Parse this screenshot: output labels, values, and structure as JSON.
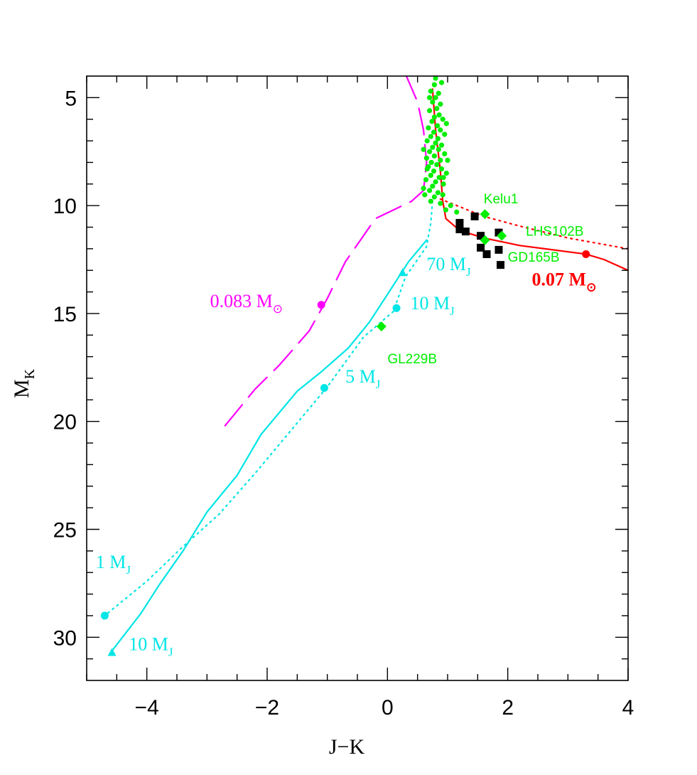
{
  "chart_data": {
    "type": "scatter",
    "xlabel": "J−K",
    "ylabel": {
      "main": "M",
      "sub": "K"
    },
    "xlim": [
      -5,
      4
    ],
    "ylim": [
      32,
      4
    ],
    "y_inverted": true,
    "x_ticks": [
      {
        "value": -4,
        "label": "−4"
      },
      {
        "value": -2,
        "label": "−2"
      },
      {
        "value": 0,
        "label": "0"
      },
      {
        "value": 2,
        "label": "2"
      },
      {
        "value": 4,
        "label": "4"
      }
    ],
    "y_ticks": [
      {
        "value": 5,
        "label": "5"
      },
      {
        "value": 10,
        "label": "10"
      },
      {
        "value": 15,
        "label": "15"
      },
      {
        "value": 20,
        "label": "20"
      },
      {
        "value": 25,
        "label": "25"
      },
      {
        "value": 30,
        "label": "30"
      }
    ],
    "grid": false,
    "colors": {
      "magenta": "#ff00ff",
      "red": "#ff0000",
      "cyan": "#00e5e5",
      "green": "#00ee00",
      "black": "#000000"
    },
    "series": [
      {
        "style": "dashed",
        "color": "#ff00ff",
        "points": [
          [
            0.3,
            3.9
          ],
          [
            0.5,
            5.2
          ],
          [
            0.6,
            6.5
          ],
          [
            0.65,
            8.0
          ],
          [
            0.6,
            9.3
          ],
          [
            0.4,
            9.8
          ],
          [
            -0.2,
            10.6
          ],
          [
            -0.7,
            12.6
          ],
          [
            -1.0,
            14.3
          ],
          [
            -1.3,
            15.8
          ],
          [
            -1.8,
            17.4
          ],
          [
            -2.2,
            18.5
          ],
          [
            -2.7,
            20.2
          ]
        ]
      },
      {
        "style": "solid",
        "color": "#ff0000",
        "points": [
          [
            0.75,
            4.6
          ],
          [
            0.8,
            6.5
          ],
          [
            0.88,
            8.4
          ],
          [
            0.92,
            9.8
          ],
          [
            0.97,
            10.6
          ],
          [
            1.2,
            11.15
          ],
          [
            1.6,
            11.5
          ],
          [
            2.2,
            11.85
          ],
          [
            3.3,
            12.25
          ],
          [
            3.6,
            12.5
          ],
          [
            4.0,
            13.0
          ]
        ]
      },
      {
        "style": "dotted",
        "color": "#ff0000",
        "points": [
          [
            0.88,
            9.7
          ],
          [
            1.2,
            10.05
          ],
          [
            1.6,
            10.5
          ],
          [
            2.2,
            10.95
          ],
          [
            3.0,
            11.5
          ],
          [
            4.0,
            12.0
          ]
        ]
      },
      {
        "style": "solid",
        "color": "#00e5e5",
        "points": [
          [
            0.65,
            11.6
          ],
          [
            0.35,
            12.6
          ],
          [
            0.05,
            13.9
          ],
          [
            -0.3,
            15.4
          ],
          [
            -0.65,
            16.6
          ],
          [
            -1.1,
            17.7
          ],
          [
            -1.5,
            18.6
          ],
          [
            -2.1,
            20.6
          ],
          [
            -2.5,
            22.5
          ],
          [
            -3.0,
            24.2
          ],
          [
            -3.4,
            26.0
          ],
          [
            -3.8,
            27.6
          ],
          [
            -4.1,
            28.9
          ],
          [
            -4.6,
            30.7
          ]
        ]
      },
      {
        "style": "dotted",
        "color": "#00e5e5",
        "points": [
          [
            0.75,
            9.8
          ],
          [
            0.72,
            10.8
          ],
          [
            0.65,
            11.9
          ],
          [
            0.3,
            13.3
          ],
          [
            0.1,
            14.9
          ],
          [
            -0.4,
            16.1
          ],
          [
            -1.0,
            18.4
          ],
          [
            -1.6,
            20.4
          ],
          [
            -2.2,
            22.4
          ],
          [
            -2.8,
            24.3
          ],
          [
            -3.4,
            25.8
          ],
          [
            -4.0,
            27.4
          ],
          [
            -4.7,
            29.0
          ]
        ]
      }
    ],
    "markers": [
      {
        "shape": "circle",
        "color": "#ff00ff",
        "x": -1.1,
        "y": 14.6
      },
      {
        "shape": "circle",
        "color": "#ff0000",
        "x": 3.3,
        "y": 12.25
      },
      {
        "shape": "triangle",
        "color": "#00e5e5",
        "x": 0.25,
        "y": 13.1
      },
      {
        "shape": "triangle",
        "color": "#00e5e5",
        "x": -4.58,
        "y": 30.7
      },
      {
        "shape": "circle",
        "color": "#00e5e5",
        "x": 0.15,
        "y": 14.75
      },
      {
        "shape": "circle",
        "color": "#00e5e5",
        "x": -1.05,
        "y": 18.45
      },
      {
        "shape": "circle",
        "color": "#00e5e5",
        "x": -4.7,
        "y": 29.0
      }
    ],
    "black_squares": [
      [
        1.45,
        10.5
      ],
      [
        1.2,
        10.8
      ],
      [
        1.2,
        11.1
      ],
      [
        1.3,
        11.2
      ],
      [
        1.55,
        11.4
      ],
      [
        1.85,
        11.25
      ],
      [
        1.55,
        11.95
      ],
      [
        1.65,
        12.25
      ],
      [
        1.85,
        12.05
      ],
      [
        1.88,
        12.75
      ]
    ],
    "green_diamonds": [
      [
        1.62,
        10.4
      ],
      [
        1.9,
        11.4
      ],
      [
        1.62,
        11.6
      ],
      [
        -0.1,
        15.6
      ]
    ],
    "green_dots": [
      [
        0.8,
        4.1
      ],
      [
        0.78,
        4.4
      ],
      [
        0.72,
        4.7
      ],
      [
        0.85,
        4.8
      ],
      [
        0.8,
        5.0
      ],
      [
        0.75,
        5.2
      ],
      [
        0.88,
        5.3
      ],
      [
        0.82,
        5.5
      ],
      [
        0.7,
        5.6
      ],
      [
        0.86,
        5.8
      ],
      [
        0.78,
        5.9
      ],
      [
        0.92,
        6.0
      ],
      [
        0.74,
        6.1
      ],
      [
        0.83,
        6.3
      ],
      [
        0.68,
        6.4
      ],
      [
        0.88,
        6.5
      ],
      [
        0.77,
        6.6
      ],
      [
        0.95,
        6.7
      ],
      [
        0.72,
        6.8
      ],
      [
        0.84,
        6.9
      ],
      [
        0.66,
        7.0
      ],
      [
        0.8,
        7.1
      ],
      [
        0.9,
        7.2
      ],
      [
        0.75,
        7.3
      ],
      [
        0.85,
        7.4
      ],
      [
        0.7,
        7.5
      ],
      [
        0.95,
        7.6
      ],
      [
        0.78,
        7.7
      ],
      [
        0.65,
        7.8
      ],
      [
        0.88,
        7.9
      ],
      [
        0.73,
        8.0
      ],
      [
        0.82,
        8.1
      ],
      [
        0.68,
        8.2
      ],
      [
        0.9,
        8.3
      ],
      [
        0.77,
        8.4
      ],
      [
        0.98,
        8.5
      ],
      [
        0.72,
        8.6
      ],
      [
        0.86,
        8.7
      ],
      [
        0.64,
        8.8
      ],
      [
        0.8,
        8.9
      ],
      [
        0.93,
        9.0
      ],
      [
        0.75,
        9.1
      ],
      [
        0.7,
        9.3
      ],
      [
        0.84,
        9.4
      ],
      [
        0.62,
        9.5
      ],
      [
        0.78,
        9.6
      ],
      [
        0.92,
        9.5
      ],
      [
        0.72,
        9.8
      ],
      [
        0.88,
        9.9
      ],
      [
        0.6,
        9.2
      ],
      [
        1.05,
        10.0
      ],
      [
        0.97,
        10.2
      ],
      [
        1.15,
        10.3
      ],
      [
        0.98,
        6.2
      ],
      [
        0.6,
        7.4
      ],
      [
        1.0,
        7.9
      ],
      [
        0.9,
        4.3
      ],
      [
        0.7,
        5.0
      ],
      [
        0.93,
        8.7
      ],
      [
        0.66,
        8.3
      ]
    ]
  },
  "annotations": [
    {
      "id": "mass-0083",
      "main": "0.083 M",
      "sub": "⊙",
      "color": "#ff00ff",
      "x": -2.95,
      "y": 14.7,
      "font": "serif"
    },
    {
      "id": "mass-007",
      "main": "0.07 M",
      "sub": "⊙",
      "color": "#ff0000",
      "x": 2.4,
      "y": 13.7,
      "font": "serif-bold"
    },
    {
      "id": "mass-70mj",
      "main": "70 M",
      "sub": "J",
      "color": "#00e5e5",
      "x": 0.65,
      "y": 13.0,
      "font": "serif"
    },
    {
      "id": "mass-10mj-upper",
      "main": "10 M",
      "sub": "J",
      "color": "#00e5e5",
      "x": 0.38,
      "y": 14.8,
      "font": "serif"
    },
    {
      "id": "mass-5mj",
      "main": "5 M",
      "sub": "J",
      "color": "#00e5e5",
      "x": -0.7,
      "y": 18.2,
      "font": "serif"
    },
    {
      "id": "mass-1mj",
      "main": "1 M",
      "sub": "J",
      "color": "#00e5e5",
      "x": -4.85,
      "y": 26.8,
      "font": "serif"
    },
    {
      "id": "mass-10mj-lower",
      "main": "10 M",
      "sub": "J",
      "color": "#00e5e5",
      "x": -4.3,
      "y": 30.6,
      "font": "serif"
    },
    {
      "id": "label-kelu1",
      "main": "Kelu1",
      "sub": "",
      "color": "#00ee00",
      "x": 1.6,
      "y": 9.9,
      "font": "sans"
    },
    {
      "id": "label-lhs102b",
      "main": "LHS102B",
      "sub": "",
      "color": "#00ee00",
      "x": 2.3,
      "y": 11.4,
      "font": "sans"
    },
    {
      "id": "label-gd165b",
      "main": "GD165B",
      "sub": "",
      "color": "#00ee00",
      "x": 2.0,
      "y": 12.6,
      "font": "sans"
    },
    {
      "id": "label-gl229b",
      "main": "GL229B",
      "sub": "",
      "color": "#00ee00",
      "x": 0.0,
      "y": 17.3,
      "font": "sans"
    }
  ]
}
